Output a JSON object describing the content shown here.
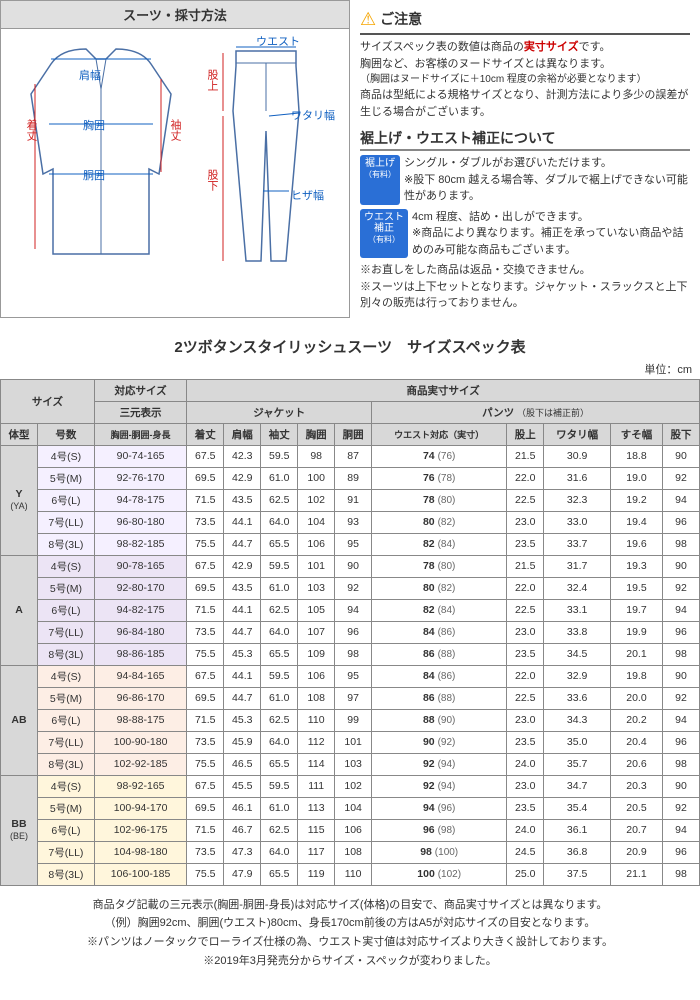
{
  "diagram": {
    "title": "スーツ・採寸方法",
    "labels": {
      "kitake": "着丈",
      "katahaba": "肩幅",
      "kyoui": "胸囲",
      "doui": "胴囲",
      "sodetake": "袖丈",
      "waist": "ウエスト",
      "matagami": "股上",
      "watari": "ワタリ幅",
      "hiza": "ヒザ幅",
      "matashita": "股下"
    }
  },
  "notice": {
    "header": "ご注意",
    "line1a": "サイズスペック表の数値は商品の",
    "line1b": "実寸サイズ",
    "line1c": "です。",
    "line2": "胸囲など、お客様のヌードサイズとは異なります。",
    "line3": "（胸囲はヌードサイズに＋10cm 程度の余裕が必要となります）",
    "line4": "商品は型紙による規格サイズとなり、計測方法により多少の誤差が生じる場合がございます。",
    "sub_header": "裾上げ・ウエスト補正について",
    "tag1a": "裾上げ",
    "tag1b": "（有料）",
    "hem1": "シングル・ダブルがお選びいただけます。",
    "hem2": "※股下 80cm 越える場合等、ダブルで裾上げできない可能性があります。",
    "tag2a": "ウエスト",
    "tag2b": "補正",
    "tag2c": "（有料）",
    "waist1": "4cm 程度、詰め・出しができます。",
    "waist2": "※商品により異なります。補正を承っていない商品や詰めのみ可能な商品もございます。",
    "foot1": "※お直しをした商品は返品・交換できません。",
    "foot2": "※スーツは上下セットとなります。ジャケット・スラックスと上下別々の販売は行っておりません。"
  },
  "spec": {
    "title": "2ツボタンスタイリッシュスーツ　サイズスペック表",
    "unit": "単位：cm",
    "headers": {
      "size": "サイズ",
      "taiou": "対応サイズ",
      "jissun": "商品実寸サイズ",
      "sangen": "三元表示",
      "jacket": "ジャケット",
      "pants": "パンツ",
      "pants_note": "（股下は補正前）",
      "taikei": "体型",
      "gousuu": "号数",
      "sangen_sub": "胸囲-胴囲-身長",
      "kitake": "着丈",
      "katahaba": "肩幅",
      "sodetake": "袖丈",
      "kyoui": "胸囲",
      "doui": "胴囲",
      "waist_taiou": "ウエスト対応（実寸）",
      "matagami": "股上",
      "watari": "ワタリ幅",
      "suso": "すそ幅",
      "matashita": "股下"
    },
    "groups": [
      {
        "label": "Y",
        "sub": "(YA)",
        "cls": "group-Y",
        "rows": [
          {
            "g": "4号(S)",
            "s": "90-74-165",
            "v": [
              "67.5",
              "42.3",
              "59.5",
              "98",
              "87",
              "74",
              "(76)",
              "21.5",
              "30.9",
              "18.8",
              "90"
            ]
          },
          {
            "g": "5号(M)",
            "s": "92-76-170",
            "v": [
              "69.5",
              "42.9",
              "61.0",
              "100",
              "89",
              "76",
              "(78)",
              "22.0",
              "31.6",
              "19.0",
              "92"
            ]
          },
          {
            "g": "6号(L)",
            "s": "94-78-175",
            "v": [
              "71.5",
              "43.5",
              "62.5",
              "102",
              "91",
              "78",
              "(80)",
              "22.5",
              "32.3",
              "19.2",
              "94"
            ]
          },
          {
            "g": "7号(LL)",
            "s": "96-80-180",
            "v": [
              "73.5",
              "44.1",
              "64.0",
              "104",
              "93",
              "80",
              "(82)",
              "23.0",
              "33.0",
              "19.4",
              "96"
            ]
          },
          {
            "g": "8号(3L)",
            "s": "98-82-185",
            "v": [
              "75.5",
              "44.7",
              "65.5",
              "106",
              "95",
              "82",
              "(84)",
              "23.5",
              "33.7",
              "19.6",
              "98"
            ]
          }
        ]
      },
      {
        "label": "A",
        "sub": "",
        "cls": "group-A",
        "rows": [
          {
            "g": "4号(S)",
            "s": "90-78-165",
            "v": [
              "67.5",
              "42.9",
              "59.5",
              "101",
              "90",
              "78",
              "(80)",
              "21.5",
              "31.7",
              "19.3",
              "90"
            ]
          },
          {
            "g": "5号(M)",
            "s": "92-80-170",
            "v": [
              "69.5",
              "43.5",
              "61.0",
              "103",
              "92",
              "80",
              "(82)",
              "22.0",
              "32.4",
              "19.5",
              "92"
            ]
          },
          {
            "g": "6号(L)",
            "s": "94-82-175",
            "v": [
              "71.5",
              "44.1",
              "62.5",
              "105",
              "94",
              "82",
              "(84)",
              "22.5",
              "33.1",
              "19.7",
              "94"
            ]
          },
          {
            "g": "7号(LL)",
            "s": "96-84-180",
            "v": [
              "73.5",
              "44.7",
              "64.0",
              "107",
              "96",
              "84",
              "(86)",
              "23.0",
              "33.8",
              "19.9",
              "96"
            ]
          },
          {
            "g": "8号(3L)",
            "s": "98-86-185",
            "v": [
              "75.5",
              "45.3",
              "65.5",
              "109",
              "98",
              "86",
              "(88)",
              "23.5",
              "34.5",
              "20.1",
              "98"
            ]
          }
        ]
      },
      {
        "label": "AB",
        "sub": "",
        "cls": "group-AB",
        "rows": [
          {
            "g": "4号(S)",
            "s": "94-84-165",
            "v": [
              "67.5",
              "44.1",
              "59.5",
              "106",
              "95",
              "84",
              "(86)",
              "22.0",
              "32.9",
              "19.8",
              "90"
            ]
          },
          {
            "g": "5号(M)",
            "s": "96-86-170",
            "v": [
              "69.5",
              "44.7",
              "61.0",
              "108",
              "97",
              "86",
              "(88)",
              "22.5",
              "33.6",
              "20.0",
              "92"
            ]
          },
          {
            "g": "6号(L)",
            "s": "98-88-175",
            "v": [
              "71.5",
              "45.3",
              "62.5",
              "110",
              "99",
              "88",
              "(90)",
              "23.0",
              "34.3",
              "20.2",
              "94"
            ]
          },
          {
            "g": "7号(LL)",
            "s": "100-90-180",
            "v": [
              "73.5",
              "45.9",
              "64.0",
              "112",
              "101",
              "90",
              "(92)",
              "23.5",
              "35.0",
              "20.4",
              "96"
            ]
          },
          {
            "g": "8号(3L)",
            "s": "102-92-185",
            "v": [
              "75.5",
              "46.5",
              "65.5",
              "114",
              "103",
              "92",
              "(94)",
              "24.0",
              "35.7",
              "20.6",
              "98"
            ]
          }
        ]
      },
      {
        "label": "BB",
        "sub": "(BE)",
        "cls": "group-BB",
        "rows": [
          {
            "g": "4号(S)",
            "s": "98-92-165",
            "v": [
              "67.5",
              "45.5",
              "59.5",
              "111",
              "102",
              "92",
              "(94)",
              "23.0",
              "34.7",
              "20.3",
              "90"
            ]
          },
          {
            "g": "5号(M)",
            "s": "100-94-170",
            "v": [
              "69.5",
              "46.1",
              "61.0",
              "113",
              "104",
              "94",
              "(96)",
              "23.5",
              "35.4",
              "20.5",
              "92"
            ]
          },
          {
            "g": "6号(L)",
            "s": "102-96-175",
            "v": [
              "71.5",
              "46.7",
              "62.5",
              "115",
              "106",
              "96",
              "(98)",
              "24.0",
              "36.1",
              "20.7",
              "94"
            ]
          },
          {
            "g": "7号(LL)",
            "s": "104-98-180",
            "v": [
              "73.5",
              "47.3",
              "64.0",
              "117",
              "108",
              "98",
              "(100)",
              "24.5",
              "36.8",
              "20.9",
              "96"
            ]
          },
          {
            "g": "8号(3L)",
            "s": "106-100-185",
            "v": [
              "75.5",
              "47.9",
              "65.5",
              "119",
              "110",
              "100",
              "(102)",
              "25.0",
              "37.5",
              "21.1",
              "98"
            ]
          }
        ]
      }
    ]
  },
  "footnote": {
    "l1": "商品タグ記載の三元表示(胸囲-胴囲-身長)は対応サイズ(体格)の目安で、商品実寸サイズとは異なります。",
    "l2": "（例）胸囲92cm、胴囲(ウエスト)80cm、身長170cm前後の方はA5が対応サイズの目安となります。",
    "l3": "※パンツはノータックでローライズ仕様の為、ウエスト実寸値は対応サイズより大きく設計しております。",
    "l4": "※2019年3月発売分からサイズ・スペックが変わりました。"
  }
}
